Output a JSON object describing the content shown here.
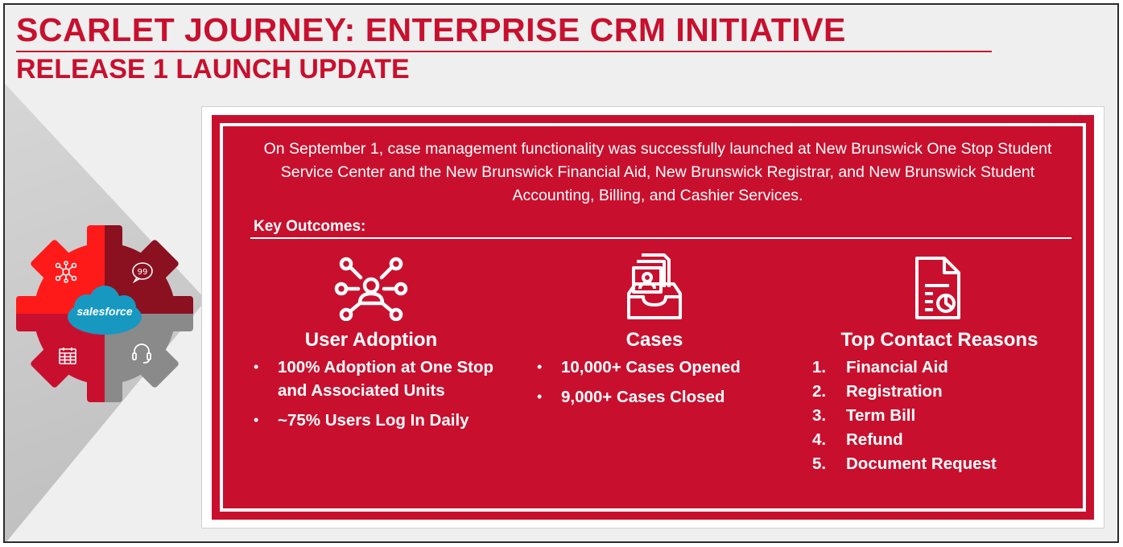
{
  "header": {
    "title": "SCARLET JOURNEY: ENTERPRISE CRM INITIATIVE",
    "subtitle": "RELEASE 1 LAUNCH UPDATE"
  },
  "logo": {
    "label": "salesforce",
    "colors": {
      "red": "#ff1a1a",
      "dark_red": "#8b1020",
      "crimson": "#c8102e",
      "gray": "#8a8a8a",
      "cloud": "#1798c1"
    },
    "segment_icons": [
      "network-icon",
      "speech-bubble-icon",
      "calendar-icon",
      "headset-icon"
    ]
  },
  "panel": {
    "intro": "On September 1, case management functionality was successfully launched at New Brunswick One Stop Student Service Center and the New Brunswick Financial Aid, New Brunswick Registrar, and New Brunswick Student Accounting, Billing, and Cashier Services.",
    "key_outcomes_label": "Key Outcomes:",
    "columns": {
      "adoption": {
        "icon": "user-network-icon",
        "title": "User Adoption",
        "bullets": [
          "100% Adoption at One Stop and Associated Units",
          "~75% Users Log In Daily"
        ]
      },
      "cases": {
        "icon": "inbox-profile-icon",
        "title": "Cases",
        "bullets": [
          "10,000+ Cases Opened",
          "9,000+ Cases Closed"
        ]
      },
      "reasons": {
        "icon": "document-chart-icon",
        "title": "Top Contact Reasons",
        "items": [
          {
            "num": "1.",
            "label": "Financial Aid"
          },
          {
            "num": "2.",
            "label": "Registration"
          },
          {
            "num": "3.",
            "label": "Term Bill"
          },
          {
            "num": "4.",
            "label": "Refund"
          },
          {
            "num": "5.",
            "label": "Document Request"
          }
        ]
      }
    }
  },
  "theme": {
    "accent": "#c8102e",
    "background": "#efefef"
  }
}
